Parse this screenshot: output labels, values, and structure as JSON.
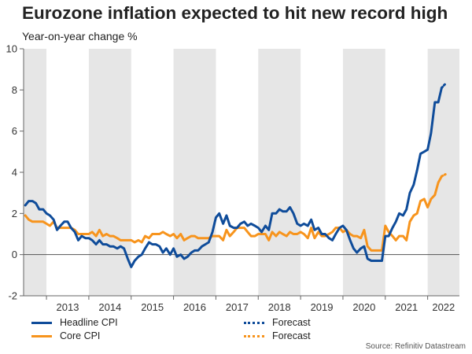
{
  "title": "Eurozone inflation expected to hit new record high",
  "subtitle": "Year-on-year change %",
  "source": "Source: Refinitiv Datastream",
  "colors": {
    "headline": "#0f4c9a",
    "core": "#f7941d",
    "shade": "#e6e6e6",
    "zero": "#555555"
  },
  "legend": [
    {
      "label": "Headline CPI",
      "series": "headline",
      "style": "solid"
    },
    {
      "label": "Core CPI",
      "series": "core",
      "style": "solid"
    },
    {
      "label": "Forecast",
      "series": "headline",
      "style": "dotted"
    },
    {
      "label": "Forecast",
      "series": "core",
      "style": "dotted"
    }
  ],
  "chart_data": {
    "type": "line",
    "title": "Eurozone inflation expected to hit new record high",
    "ylabel": "Year-on-year change %",
    "xlabel": "",
    "xlim": [
      2012.46,
      2022.75
    ],
    "ylim": [
      -2,
      10
    ],
    "yticks": [
      -2,
      0,
      2,
      4,
      6,
      8,
      10
    ],
    "year_labels": [
      "2013",
      "2014",
      "2015",
      "2016",
      "2017",
      "2018",
      "2019",
      "2020",
      "2021",
      "2022"
    ],
    "shaded_years": [
      2012,
      2014,
      2016,
      2018,
      2020,
      2022
    ],
    "series": [
      {
        "name": "Headline CPI",
        "key": "headline",
        "points": [
          [
            2012.5,
            2.4
          ],
          [
            2012.58,
            2.6
          ],
          [
            2012.67,
            2.6
          ],
          [
            2012.75,
            2.5
          ],
          [
            2012.83,
            2.2
          ],
          [
            2012.92,
            2.2
          ],
          [
            2013.0,
            2.0
          ],
          [
            2013.08,
            1.9
          ],
          [
            2013.17,
            1.7
          ],
          [
            2013.25,
            1.2
          ],
          [
            2013.33,
            1.4
          ],
          [
            2013.42,
            1.6
          ],
          [
            2013.5,
            1.6
          ],
          [
            2013.58,
            1.3
          ],
          [
            2013.67,
            1.1
          ],
          [
            2013.75,
            0.7
          ],
          [
            2013.83,
            0.9
          ],
          [
            2013.92,
            0.8
          ],
          [
            2014.0,
            0.8
          ],
          [
            2014.08,
            0.7
          ],
          [
            2014.17,
            0.5
          ],
          [
            2014.25,
            0.7
          ],
          [
            2014.33,
            0.5
          ],
          [
            2014.42,
            0.5
          ],
          [
            2014.5,
            0.4
          ],
          [
            2014.58,
            0.4
          ],
          [
            2014.67,
            0.3
          ],
          [
            2014.75,
            0.4
          ],
          [
            2014.83,
            0.3
          ],
          [
            2014.92,
            -0.2
          ],
          [
            2015.0,
            -0.6
          ],
          [
            2015.08,
            -0.3
          ],
          [
            2015.17,
            -0.1
          ],
          [
            2015.25,
            0.0
          ],
          [
            2015.33,
            0.3
          ],
          [
            2015.42,
            0.6
          ],
          [
            2015.5,
            0.5
          ],
          [
            2015.58,
            0.5
          ],
          [
            2015.67,
            0.4
          ],
          [
            2015.75,
            0.1
          ],
          [
            2015.83,
            0.3
          ],
          [
            2015.92,
            0.0
          ],
          [
            2016.0,
            0.3
          ],
          [
            2016.08,
            -0.1
          ],
          [
            2016.17,
            0.0
          ],
          [
            2016.25,
            -0.2
          ],
          [
            2016.33,
            -0.1
          ],
          [
            2016.42,
            0.1
          ],
          [
            2016.5,
            0.2
          ],
          [
            2016.58,
            0.2
          ],
          [
            2016.67,
            0.4
          ],
          [
            2016.75,
            0.5
          ],
          [
            2016.83,
            0.6
          ],
          [
            2016.92,
            1.1
          ],
          [
            2017.0,
            1.8
          ],
          [
            2017.08,
            2.0
          ],
          [
            2017.17,
            1.5
          ],
          [
            2017.25,
            1.9
          ],
          [
            2017.33,
            1.4
          ],
          [
            2017.42,
            1.3
          ],
          [
            2017.5,
            1.3
          ],
          [
            2017.58,
            1.5
          ],
          [
            2017.67,
            1.6
          ],
          [
            2017.75,
            1.4
          ],
          [
            2017.83,
            1.5
          ],
          [
            2017.92,
            1.4
          ],
          [
            2018.0,
            1.3
          ],
          [
            2018.08,
            1.1
          ],
          [
            2018.17,
            1.4
          ],
          [
            2018.25,
            1.2
          ],
          [
            2018.33,
            2.0
          ],
          [
            2018.42,
            2.0
          ],
          [
            2018.5,
            2.2
          ],
          [
            2018.58,
            2.1
          ],
          [
            2018.67,
            2.1
          ],
          [
            2018.75,
            2.3
          ],
          [
            2018.83,
            2.0
          ],
          [
            2018.92,
            1.5
          ],
          [
            2019.0,
            1.4
          ],
          [
            2019.08,
            1.5
          ],
          [
            2019.17,
            1.4
          ],
          [
            2019.25,
            1.7
          ],
          [
            2019.33,
            1.2
          ],
          [
            2019.42,
            1.3
          ],
          [
            2019.5,
            1.0
          ],
          [
            2019.58,
            1.0
          ],
          [
            2019.67,
            0.8
          ],
          [
            2019.75,
            0.7
          ],
          [
            2019.83,
            1.0
          ],
          [
            2019.92,
            1.3
          ],
          [
            2020.0,
            1.4
          ],
          [
            2020.08,
            1.2
          ],
          [
            2020.17,
            0.7
          ],
          [
            2020.25,
            0.3
          ],
          [
            2020.33,
            0.1
          ],
          [
            2020.42,
            0.3
          ],
          [
            2020.5,
            0.4
          ],
          [
            2020.58,
            -0.2
          ],
          [
            2020.67,
            -0.3
          ],
          [
            2020.75,
            -0.3
          ],
          [
            2020.83,
            -0.3
          ],
          [
            2020.92,
            -0.3
          ],
          [
            2021.0,
            0.9
          ],
          [
            2021.08,
            0.9
          ],
          [
            2021.17,
            1.3
          ],
          [
            2021.25,
            1.6
          ],
          [
            2021.33,
            2.0
          ],
          [
            2021.42,
            1.9
          ],
          [
            2021.5,
            2.2
          ],
          [
            2021.58,
            3.0
          ],
          [
            2021.67,
            3.4
          ],
          [
            2021.75,
            4.1
          ],
          [
            2021.83,
            4.9
          ],
          [
            2021.92,
            5.0
          ],
          [
            2022.0,
            5.1
          ],
          [
            2022.08,
            5.9
          ],
          [
            2022.17,
            7.4
          ],
          [
            2022.25,
            7.4
          ],
          [
            2022.33,
            8.1
          ]
        ],
        "forecast": [
          [
            2022.33,
            8.1
          ],
          [
            2022.42,
            8.3
          ]
        ]
      },
      {
        "name": "Core CPI",
        "key": "core",
        "points": [
          [
            2012.5,
            1.9
          ],
          [
            2012.58,
            1.7
          ],
          [
            2012.67,
            1.6
          ],
          [
            2012.75,
            1.6
          ],
          [
            2012.83,
            1.6
          ],
          [
            2012.92,
            1.6
          ],
          [
            2013.0,
            1.5
          ],
          [
            2013.08,
            1.4
          ],
          [
            2013.17,
            1.6
          ],
          [
            2013.25,
            1.3
          ],
          [
            2013.33,
            1.3
          ],
          [
            2013.42,
            1.3
          ],
          [
            2013.5,
            1.3
          ],
          [
            2013.58,
            1.3
          ],
          [
            2013.67,
            1.2
          ],
          [
            2013.75,
            1.0
          ],
          [
            2013.83,
            1.0
          ],
          [
            2013.92,
            1.0
          ],
          [
            2014.0,
            1.0
          ],
          [
            2014.08,
            1.1
          ],
          [
            2014.17,
            0.9
          ],
          [
            2014.25,
            1.2
          ],
          [
            2014.33,
            0.9
          ],
          [
            2014.42,
            1.0
          ],
          [
            2014.5,
            0.9
          ],
          [
            2014.58,
            0.9
          ],
          [
            2014.67,
            0.8
          ],
          [
            2014.75,
            0.7
          ],
          [
            2014.83,
            0.7
          ],
          [
            2014.92,
            0.7
          ],
          [
            2015.0,
            0.7
          ],
          [
            2015.08,
            0.6
          ],
          [
            2015.17,
            0.7
          ],
          [
            2015.25,
            0.6
          ],
          [
            2015.33,
            0.9
          ],
          [
            2015.42,
            0.8
          ],
          [
            2015.5,
            1.0
          ],
          [
            2015.58,
            1.0
          ],
          [
            2015.67,
            1.0
          ],
          [
            2015.75,
            1.1
          ],
          [
            2015.83,
            1.0
          ],
          [
            2015.92,
            0.9
          ],
          [
            2016.0,
            1.0
          ],
          [
            2016.08,
            0.8
          ],
          [
            2016.17,
            1.0
          ],
          [
            2016.25,
            0.7
          ],
          [
            2016.33,
            0.8
          ],
          [
            2016.42,
            0.9
          ],
          [
            2016.5,
            0.9
          ],
          [
            2016.58,
            0.8
          ],
          [
            2016.67,
            0.8
          ],
          [
            2016.75,
            0.8
          ],
          [
            2016.83,
            0.8
          ],
          [
            2016.92,
            0.9
          ],
          [
            2017.0,
            0.9
          ],
          [
            2017.08,
            0.9
          ],
          [
            2017.17,
            0.7
          ],
          [
            2017.25,
            1.2
          ],
          [
            2017.33,
            0.9
          ],
          [
            2017.42,
            1.1
          ],
          [
            2017.5,
            1.3
          ],
          [
            2017.58,
            1.3
          ],
          [
            2017.67,
            1.3
          ],
          [
            2017.75,
            1.1
          ],
          [
            2017.83,
            0.9
          ],
          [
            2017.92,
            0.9
          ],
          [
            2018.0,
            1.0
          ],
          [
            2018.08,
            1.0
          ],
          [
            2018.17,
            1.0
          ],
          [
            2018.25,
            0.7
          ],
          [
            2018.33,
            1.1
          ],
          [
            2018.42,
            0.9
          ],
          [
            2018.5,
            1.1
          ],
          [
            2018.58,
            1.0
          ],
          [
            2018.67,
            0.9
          ],
          [
            2018.75,
            1.1
          ],
          [
            2018.83,
            1.0
          ],
          [
            2018.92,
            1.0
          ],
          [
            2019.0,
            1.1
          ],
          [
            2019.08,
            1.0
          ],
          [
            2019.17,
            0.8
          ],
          [
            2019.25,
            1.3
          ],
          [
            2019.33,
            0.8
          ],
          [
            2019.42,
            1.1
          ],
          [
            2019.5,
            0.9
          ],
          [
            2019.58,
            0.9
          ],
          [
            2019.67,
            1.0
          ],
          [
            2019.75,
            1.1
          ],
          [
            2019.83,
            1.3
          ],
          [
            2019.92,
            1.3
          ],
          [
            2020.0,
            1.1
          ],
          [
            2020.08,
            1.2
          ],
          [
            2020.17,
            1.0
          ],
          [
            2020.25,
            0.9
          ],
          [
            2020.33,
            0.9
          ],
          [
            2020.42,
            0.8
          ],
          [
            2020.5,
            1.2
          ],
          [
            2020.58,
            0.4
          ],
          [
            2020.67,
            0.2
          ],
          [
            2020.75,
            0.2
          ],
          [
            2020.83,
            0.2
          ],
          [
            2020.92,
            0.2
          ],
          [
            2021.0,
            1.4
          ],
          [
            2021.08,
            1.1
          ],
          [
            2021.17,
            0.9
          ],
          [
            2021.25,
            0.7
          ],
          [
            2021.33,
            0.9
          ],
          [
            2021.42,
            0.9
          ],
          [
            2021.5,
            0.7
          ],
          [
            2021.58,
            1.6
          ],
          [
            2021.67,
            1.9
          ],
          [
            2021.75,
            2.0
          ],
          [
            2021.83,
            2.6
          ],
          [
            2021.92,
            2.7
          ],
          [
            2022.0,
            2.3
          ],
          [
            2022.08,
            2.7
          ],
          [
            2022.17,
            2.9
          ],
          [
            2022.25,
            3.5
          ],
          [
            2022.33,
            3.8
          ]
        ],
        "forecast": [
          [
            2022.33,
            3.8
          ],
          [
            2022.42,
            3.9
          ]
        ]
      }
    ]
  }
}
